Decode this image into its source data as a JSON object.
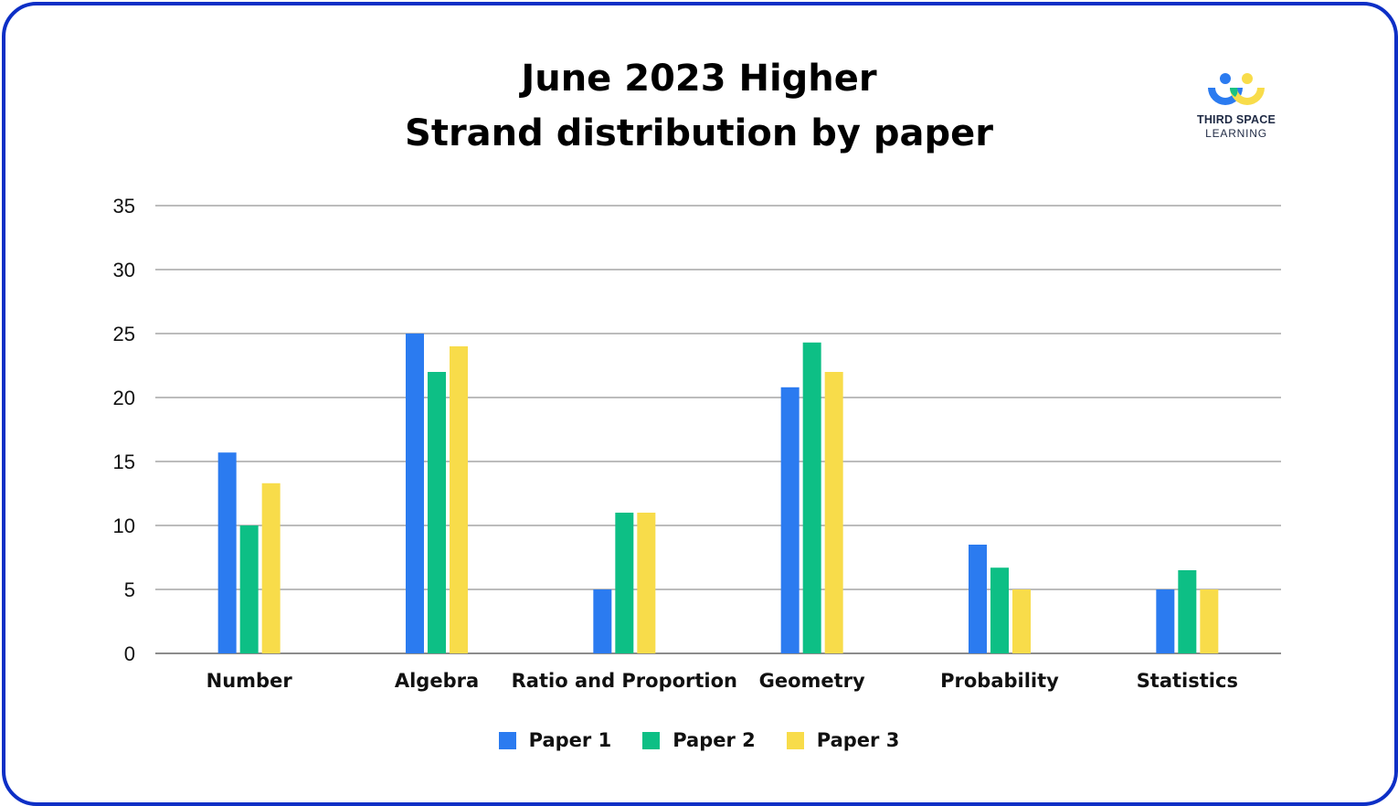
{
  "chart_data": {
    "type": "bar",
    "title": "June 2023 Higher",
    "subtitle": "Strand distribution by paper",
    "categories": [
      "Number",
      "Algebra",
      "Ratio and Proportion",
      "Geometry",
      "Probability",
      "Statistics"
    ],
    "series": [
      {
        "name": "Paper 1",
        "color": "#2b7bf0",
        "values": [
          15.7,
          25,
          5,
          20.8,
          8.5,
          5
        ]
      },
      {
        "name": "Paper 2",
        "color": "#0dbf85",
        "values": [
          10,
          22,
          11,
          24.3,
          6.7,
          6.5
        ]
      },
      {
        "name": "Paper 3",
        "color": "#f8dc4a",
        "values": [
          13.3,
          24,
          11,
          22,
          5,
          5
        ]
      }
    ],
    "ylim": [
      0,
      35
    ],
    "yticks": [
      0,
      5,
      10,
      15,
      20,
      25,
      30,
      35
    ],
    "grid": true,
    "legend_position": "bottom"
  },
  "logo": {
    "line1": "THIRD SPACE",
    "line2": "LEARNING",
    "colors": [
      "#2b7bf0",
      "#0dbf85",
      "#f8dc4a"
    ]
  },
  "frame": {
    "border_color": "#0d2fc6"
  }
}
